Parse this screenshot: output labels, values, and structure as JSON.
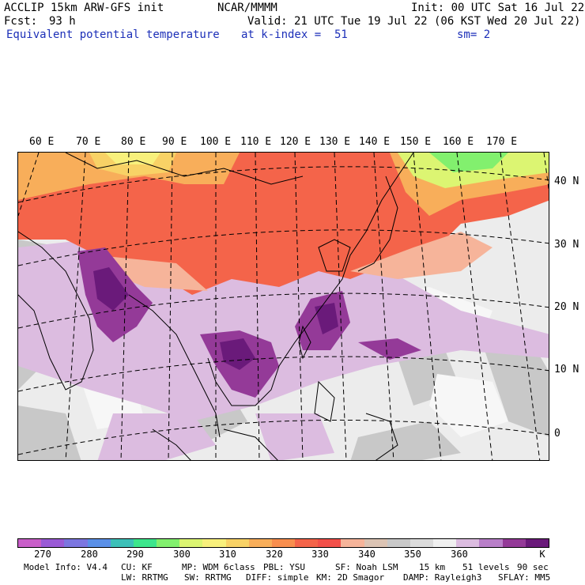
{
  "header": {
    "model": "ACCLIP 15km ARW-GFS init",
    "org": "NCAR/MMMM",
    "init": "Init: 00 UTC Sat 16 Jul 22",
    "fcst_label": "Fcst:",
    "fcst_value": "93 h",
    "valid": "Valid: 21 UTC Tue 19 Jul 22 (06 KST Wed 20 Jul 22)",
    "field": "Equivalent potential temperature",
    "level": "at k-index =  51",
    "smoothing": "sm= 2"
  },
  "map": {
    "lon_labels": [
      "60 E",
      "70 E",
      "80 E",
      "90 E",
      "100 E",
      "110 E",
      "120 E",
      "130 E",
      "140 E",
      "150 E",
      "160 E",
      "170 E"
    ],
    "lat_labels": [
      "40 N",
      "30 N",
      "20 N",
      "10 N",
      "0"
    ]
  },
  "colorbar": {
    "colors": [
      "#c85ec8",
      "#9a5ad6",
      "#7c76e0",
      "#5a90e8",
      "#3cc0b8",
      "#3ce68c",
      "#82f06e",
      "#dcf572",
      "#f8f07c",
      "#f8d266",
      "#f8ae5a",
      "#f88e4e",
      "#f4644a",
      "#f2504a",
      "#f6b49a",
      "#dcc4b4",
      "#c8c8c8",
      "#dcdcdc",
      "#f0f0f0",
      "#dcbce0",
      "#b97fc9",
      "#943a98",
      "#6a1a7a"
    ],
    "ticks": [
      "270",
      "280",
      "290",
      "300",
      "310",
      "320",
      "330",
      "340",
      "350",
      "360"
    ],
    "unit": "K"
  },
  "footer": {
    "line1": [
      "Model Info: V4.4",
      "CU: KF",
      "MP: WDM 6class",
      "PBL: YSU",
      "SF: Noah LSM",
      "15 km",
      "51 levels",
      "90 sec"
    ],
    "line2": [
      "LW: RRTMG",
      "SW: RRTMG",
      "DIFF: simple",
      "KM: 2D Smagor",
      "DAMP: Rayleigh3",
      "SFLAY: MM5"
    ]
  }
}
